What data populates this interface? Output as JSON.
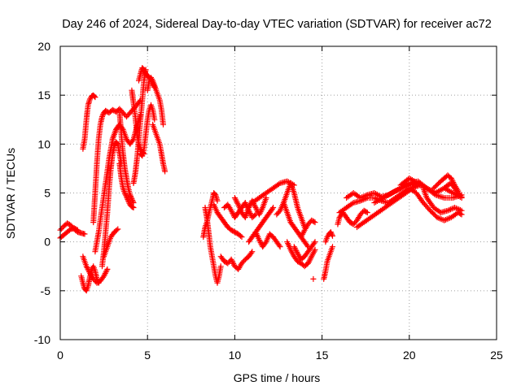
{
  "chart_data": {
    "type": "scatter",
    "title": "Day 246 of 2024, Sidereal Day-to-day VTEC variation (SDTVAR) for receiver ac72",
    "xlabel": "GPS time / hours",
    "ylabel": "SDTVAR / TECUs",
    "xlim": [
      0,
      25
    ],
    "ylim": [
      -10,
      20
    ],
    "x_ticks": [
      0,
      5,
      10,
      15,
      20,
      25
    ],
    "y_ticks": [
      -10,
      -5,
      0,
      5,
      10,
      15,
      20
    ],
    "grid": true,
    "marker": "+",
    "series": [
      {
        "name": "SDTVAR",
        "color": "#ff0000",
        "tracks": [
          {
            "x": [
              0.0,
              0.2,
              0.4,
              0.6,
              0.8,
              1.0,
              1.2,
              1.4
            ],
            "y": [
              1.2,
              1.6,
              1.9,
              1.7,
              1.3,
              1.0,
              0.9,
              0.8
            ]
          },
          {
            "x": [
              0.0,
              0.2,
              0.4,
              0.6,
              0.8,
              1.0
            ],
            "y": [
              0.4,
              0.7,
              1.0,
              1.3,
              1.4,
              1.2
            ]
          },
          {
            "x": [
              1.3,
              1.4,
              1.45,
              1.5,
              1.55,
              1.6,
              1.7,
              1.8,
              1.9,
              2.0
            ],
            "y": [
              9.5,
              10.5,
              11.5,
              12.5,
              13.3,
              14.0,
              14.6,
              14.9,
              15.0,
              14.8
            ]
          },
          {
            "x": [
              1.2,
              1.3,
              1.4,
              1.5,
              1.6,
              1.7,
              1.8,
              1.9,
              2.0,
              2.1,
              2.2
            ],
            "y": [
              -3.5,
              -4.2,
              -4.8,
              -5.0,
              -4.5,
              -3.6,
              -2.8,
              -2.5,
              -3.0,
              -3.8,
              -4.2
            ]
          },
          {
            "x": [
              1.3,
              1.5,
              1.7,
              1.9,
              2.1,
              2.3,
              2.5,
              2.7
            ],
            "y": [
              -1.5,
              -2.5,
              -3.2,
              -3.8,
              -4.2,
              -4.0,
              -3.5,
              -2.8
            ]
          },
          {
            "x": [
              1.9,
              2.0,
              2.1,
              2.2,
              2.3,
              2.4,
              2.5,
              2.6
            ],
            "y": [
              2.0,
              5.0,
              8.0,
              10.5,
              12.0,
              12.8,
              13.2,
              13.4
            ]
          },
          {
            "x": [
              2.6,
              2.8,
              3.0,
              3.2,
              3.4,
              3.6,
              3.8,
              4.0,
              4.2,
              4.4,
              4.6
            ],
            "y": [
              13.4,
              13.2,
              13.5,
              13.3,
              13.6,
              13.2,
              12.8,
              13.2,
              13.6,
              14.0,
              14.5
            ]
          },
          {
            "x": [
              2.0,
              2.2,
              2.4,
              2.6,
              2.8,
              3.0,
              3.2,
              3.4
            ],
            "y": [
              -1.0,
              1.0,
              3.5,
              6.0,
              8.5,
              10.5,
              11.5,
              12.0
            ]
          },
          {
            "x": [
              2.4,
              2.5,
              2.6,
              2.7,
              2.8,
              2.9,
              3.0,
              3.1,
              3.2,
              3.3,
              3.4,
              3.5
            ],
            "y": [
              -2.5,
              -1.0,
              1.0,
              3.0,
              5.5,
              7.5,
              9.0,
              9.8,
              10.2,
              10.0,
              9.0,
              8.0
            ]
          },
          {
            "x": [
              2.5,
              2.7,
              2.9,
              3.1,
              3.3
            ],
            "y": [
              -1.5,
              -0.5,
              0.5,
              1.0,
              1.3
            ]
          },
          {
            "x": [
              3.4,
              3.5,
              3.6,
              3.7,
              3.8,
              3.9,
              4.0,
              4.1,
              4.2
            ],
            "y": [
              8.0,
              6.5,
              5.5,
              5.0,
              4.6,
              4.2,
              3.8,
              3.6,
              3.5
            ]
          },
          {
            "x": [
              3.0,
              3.2,
              3.4,
              3.6,
              3.8,
              4.0,
              4.2,
              4.4,
              4.6
            ],
            "y": [
              10.5,
              11.5,
              12.0,
              11.5,
              10.5,
              10.0,
              10.5,
              11.8,
              13.0
            ]
          },
          {
            "x": [
              3.4,
              3.5,
              3.6,
              3.7,
              3.8,
              3.9,
              4.0,
              4.1,
              4.2
            ],
            "y": [
              13.2,
              11.0,
              9.0,
              7.5,
              6.5,
              5.5,
              4.8,
              4.4,
              4.0
            ]
          },
          {
            "x": [
              4.2,
              4.3,
              4.4,
              4.5,
              4.6,
              4.7,
              4.8,
              4.9
            ],
            "y": [
              6.0,
              7.0,
              8.5,
              10.5,
              12.5,
              14.5,
              16.5,
              17.6
            ]
          },
          {
            "x": [
              4.5,
              4.6,
              4.7,
              4.8,
              4.9,
              5.0,
              5.1,
              5.2,
              5.3,
              5.4
            ],
            "y": [
              16.5,
              17.2,
              17.8,
              17.6,
              17.2,
              17.0,
              16.8,
              16.5,
              16.2,
              15.8
            ]
          },
          {
            "x": [
              5.0,
              5.1,
              5.2,
              5.3,
              5.4,
              5.5,
              5.6,
              5.7,
              5.8,
              5.9
            ],
            "y": [
              15.5,
              16.5,
              16.8,
              16.5,
              16.0,
              15.5,
              15.0,
              14.5,
              13.5,
              12.0
            ]
          },
          {
            "x": [
              4.6,
              4.7,
              4.8,
              4.9,
              5.0,
              5.1,
              5.2,
              5.3,
              5.4
            ],
            "y": [
              9.0,
              8.8,
              9.5,
              11.0,
              12.5,
              13.5,
              14.0,
              13.5,
              12.5
            ]
          },
          {
            "x": [
              4.1,
              4.2,
              4.3,
              4.4,
              4.5,
              4.6,
              4.7,
              4.8
            ],
            "y": [
              15.5,
              14.2,
              12.8,
              11.0,
              10.0,
              9.5,
              9.2,
              9.0
            ]
          },
          {
            "x": [
              5.3,
              5.4,
              5.5,
              5.6,
              5.7,
              5.8,
              5.9,
              6.0
            ],
            "y": [
              12.0,
              11.5,
              11.0,
              10.5,
              10.0,
              9.0,
              8.0,
              7.2
            ]
          },
          {
            "x": [
              8.3,
              8.4,
              8.5,
              8.6,
              8.7,
              8.8,
              8.9,
              9.0,
              9.1,
              9.2
            ],
            "y": [
              3.5,
              2.5,
              1.0,
              -0.5,
              -1.5,
              -2.5,
              -3.5,
              -4.2,
              -3.5,
              -2.5
            ]
          },
          {
            "x": [
              8.2,
              8.3,
              8.4,
              8.5,
              8.6,
              8.7,
              8.8,
              8.9,
              9.0
            ],
            "y": [
              0.5,
              1.5,
              2.0,
              2.8,
              3.5,
              4.2,
              5.0,
              4.8,
              4.2
            ]
          },
          {
            "x": [
              8.8,
              9.0,
              9.2,
              9.4,
              9.6,
              9.8,
              10.0,
              10.2,
              10.4
            ],
            "y": [
              3.8,
              3.0,
              2.5,
              2.0,
              1.5,
              1.2,
              1.0,
              0.8,
              0.5
            ]
          },
          {
            "x": [
              9.2,
              9.4,
              9.6,
              9.8,
              10.0,
              10.2,
              10.4,
              10.6,
              10.8,
              11.0
            ],
            "y": [
              -1.5,
              -2.0,
              -2.2,
              -1.8,
              -2.5,
              -2.8,
              -2.2,
              -1.8,
              -1.5,
              -1.0
            ]
          },
          {
            "x": [
              9.4,
              9.6,
              9.8,
              10.0,
              10.2,
              10.4,
              10.6,
              10.8,
              11.0,
              11.2
            ],
            "y": [
              3.5,
              3.8,
              3.2,
              2.5,
              3.0,
              3.5,
              4.0,
              3.2,
              2.5,
              2.8
            ]
          },
          {
            "x": [
              10.0,
              10.2,
              10.4,
              10.6,
              10.8,
              11.0,
              11.2,
              11.4,
              11.6,
              11.8
            ],
            "y": [
              4.5,
              3.8,
              3.0,
              2.5,
              3.5,
              4.2,
              3.5,
              2.8,
              3.5,
              4.5
            ]
          },
          {
            "x": [
              10.8,
              11.0,
              11.2,
              11.4,
              11.6,
              11.8,
              12.0,
              12.2
            ],
            "y": [
              0.0,
              0.5,
              1.0,
              1.5,
              2.0,
              2.5,
              3.0,
              3.5
            ]
          },
          {
            "x": [
              11.2,
              11.4,
              11.6,
              11.8,
              12.0,
              12.2,
              12.4,
              12.6
            ],
            "y": [
              1.0,
              0.2,
              -0.5,
              0.0,
              0.8,
              0.5,
              0.0,
              -0.5
            ]
          },
          {
            "x": [
              11.0,
              11.4,
              11.8,
              12.2,
              12.6,
              13.0,
              13.4
            ],
            "y": [
              4.0,
              4.5,
              5.0,
              5.5,
              6.0,
              6.2,
              5.8
            ]
          },
          {
            "x": [
              12.4,
              12.6,
              12.8,
              13.0,
              13.2,
              13.4,
              13.6,
              13.8,
              14.0
            ],
            "y": [
              2.8,
              3.2,
              4.0,
              5.0,
              6.0,
              5.0,
              3.5,
              2.5,
              1.5
            ]
          },
          {
            "x": [
              12.8,
              13.0,
              13.2,
              13.4,
              13.6,
              13.8,
              14.0,
              14.2
            ],
            "y": [
              4.0,
              3.0,
              2.0,
              1.5,
              1.0,
              0.5,
              0.0,
              -0.5
            ]
          },
          {
            "x": [
              13.0,
              13.2,
              13.4,
              13.6,
              13.8,
              14.0,
              14.2,
              14.4,
              14.6
            ],
            "y": [
              0.0,
              -0.8,
              -1.5,
              -2.0,
              -2.2,
              -2.5,
              -2.2,
              -1.5,
              -0.8
            ]
          },
          {
            "x": [
              13.4,
              13.6,
              13.8,
              14.0,
              14.2,
              14.4,
              14.6
            ],
            "y": [
              -0.5,
              -1.2,
              -1.8,
              -1.5,
              -1.0,
              -0.5,
              0.0
            ]
          },
          {
            "x": [
              13.8,
              14.0,
              14.2,
              14.4,
              14.6
            ],
            "y": [
              0.5,
              1.2,
              1.8,
              2.2,
              2.0
            ]
          },
          {
            "x": [
              14.5
            ],
            "y": [
              -3.8
            ]
          },
          {
            "x": [
              15.1,
              15.2,
              15.3,
              15.4,
              15.5,
              15.6
            ],
            "y": [
              -3.8,
              -3.0,
              -2.0,
              -1.5,
              -1.0,
              -0.5
            ]
          },
          {
            "x": [
              15.2,
              15.3,
              15.4,
              15.5,
              15.6
            ],
            "y": [
              0.0,
              0.5,
              0.8,
              1.0,
              0.6
            ]
          },
          {
            "x": [
              15.9,
              16.0,
              16.2,
              16.4,
              16.6,
              16.8,
              17.0,
              17.2,
              17.4,
              17.6
            ],
            "y": [
              1.8,
              2.5,
              3.0,
              2.5,
              2.0,
              1.8,
              2.2,
              2.8,
              3.2,
              3.0
            ]
          },
          {
            "x": [
              16.0,
              16.4,
              16.8,
              17.2,
              17.6,
              18.0,
              18.4,
              18.8,
              19.2,
              19.6,
              20.0
            ],
            "y": [
              3.0,
              3.5,
              4.0,
              4.2,
              4.5,
              4.5,
              4.2,
              4.0,
              4.5,
              5.0,
              5.5
            ]
          },
          {
            "x": [
              16.4,
              16.8,
              17.2,
              17.6,
              18.0,
              18.4,
              18.8,
              19.2,
              19.6,
              20.0,
              20.4
            ],
            "y": [
              4.5,
              5.0,
              4.5,
              4.8,
              5.0,
              4.6,
              4.8,
              5.2,
              5.5,
              5.8,
              6.0
            ]
          },
          {
            "x": [
              17.0,
              17.4,
              17.8,
              18.2,
              18.6,
              19.0,
              19.4,
              19.8,
              20.2,
              20.6
            ],
            "y": [
              1.5,
              2.0,
              2.5,
              3.0,
              3.5,
              4.0,
              4.5,
              5.0,
              5.5,
              5.8
            ]
          },
          {
            "x": [
              18.0,
              18.5,
              19.0,
              19.5,
              20.0,
              20.5,
              21.0,
              21.5,
              22.0,
              22.5,
              23.0
            ],
            "y": [
              4.0,
              4.5,
              5.0,
              5.5,
              6.0,
              6.2,
              5.5,
              4.8,
              4.5,
              4.5,
              4.8
            ]
          },
          {
            "x": [
              19.5,
              20.0,
              20.5,
              21.0,
              21.5,
              22.0,
              22.5,
              23.0
            ],
            "y": [
              5.8,
              6.5,
              6.0,
              5.5,
              5.0,
              5.5,
              5.0,
              4.5
            ]
          },
          {
            "x": [
              20.0,
              20.4,
              20.8,
              21.2,
              21.6,
              22.0,
              22.4,
              22.8,
              23.0
            ],
            "y": [
              5.5,
              5.0,
              4.0,
              3.2,
              2.5,
              2.2,
              2.5,
              3.0,
              2.8
            ]
          },
          {
            "x": [
              20.8,
              21.0,
              21.4,
              21.8,
              22.2,
              22.6,
              23.0
            ],
            "y": [
              5.5,
              4.5,
              3.5,
              3.0,
              3.2,
              3.5,
              3.2
            ]
          },
          {
            "x": [
              21.4,
              21.8,
              22.0,
              22.2,
              22.4,
              22.6,
              22.8
            ],
            "y": [
              5.5,
              6.2,
              6.5,
              6.8,
              6.5,
              5.8,
              5.2
            ]
          },
          {
            "x": [
              22.0,
              22.2,
              22.4,
              22.6,
              22.8,
              23.0
            ],
            "y": [
              5.5,
              5.8,
              6.0,
              5.5,
              5.0,
              4.6
            ]
          }
        ]
      }
    ]
  }
}
